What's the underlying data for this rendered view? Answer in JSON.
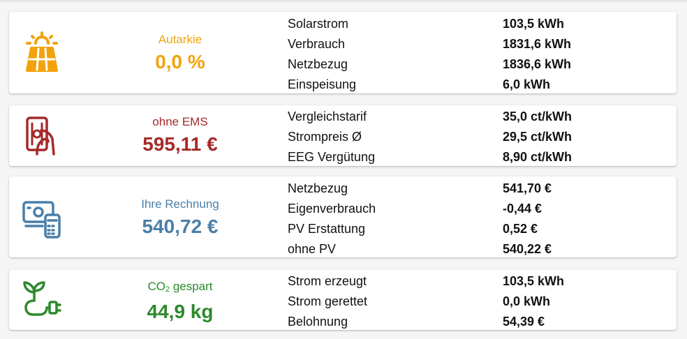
{
  "colors": {
    "amber": "#f2a20c",
    "red": "#a52a2a",
    "blue": "#4a7fa8",
    "green": "#2b8a2b"
  },
  "cards": [
    {
      "icon": "solar-panel-icon",
      "label": "Autarkie",
      "value": "0,0 %",
      "rows": [
        {
          "label": "Solarstrom",
          "value": "103,5 kWh"
        },
        {
          "label": "Verbrauch",
          "value": "1831,6 kWh"
        },
        {
          "label": "Netzbezug",
          "value": "1836,6 kWh"
        },
        {
          "label": "Einspeisung",
          "value": "6,0 kWh"
        }
      ]
    },
    {
      "icon": "hand-money-icon",
      "label": "ohne EMS",
      "value": "595,11 €",
      "rows": [
        {
          "label": "Vergleichstarif",
          "value": "35,0 ct/kWh"
        },
        {
          "label": "Strompreis Ø",
          "value": "29,5 ct/kWh"
        },
        {
          "label": "EEG Vergütung",
          "value": "8,90 ct/kWh"
        }
      ]
    },
    {
      "icon": "cash-calculator-icon",
      "label": "Ihre Rechnung",
      "value": "540,72 €",
      "rows": [
        {
          "label": "Netzbezug",
          "value": "541,70 €"
        },
        {
          "label": "Eigenverbrauch",
          "value": "-0,44 €"
        },
        {
          "label": "PV Erstattung",
          "value": "0,52 €"
        },
        {
          "label": "ohne PV",
          "value": "540,22 €"
        }
      ]
    },
    {
      "icon": "plant-plug-icon",
      "label_prefix": "CO",
      "label_sub": "2",
      "label_suffix": " gespart",
      "value": "44,9 kg",
      "rows": [
        {
          "label": "Strom erzeugt",
          "value": "103,5 kWh"
        },
        {
          "label": "Strom gerettet",
          "value": "0,0 kWh"
        },
        {
          "label": "Belohnung",
          "value": "54,39 €"
        }
      ]
    }
  ]
}
